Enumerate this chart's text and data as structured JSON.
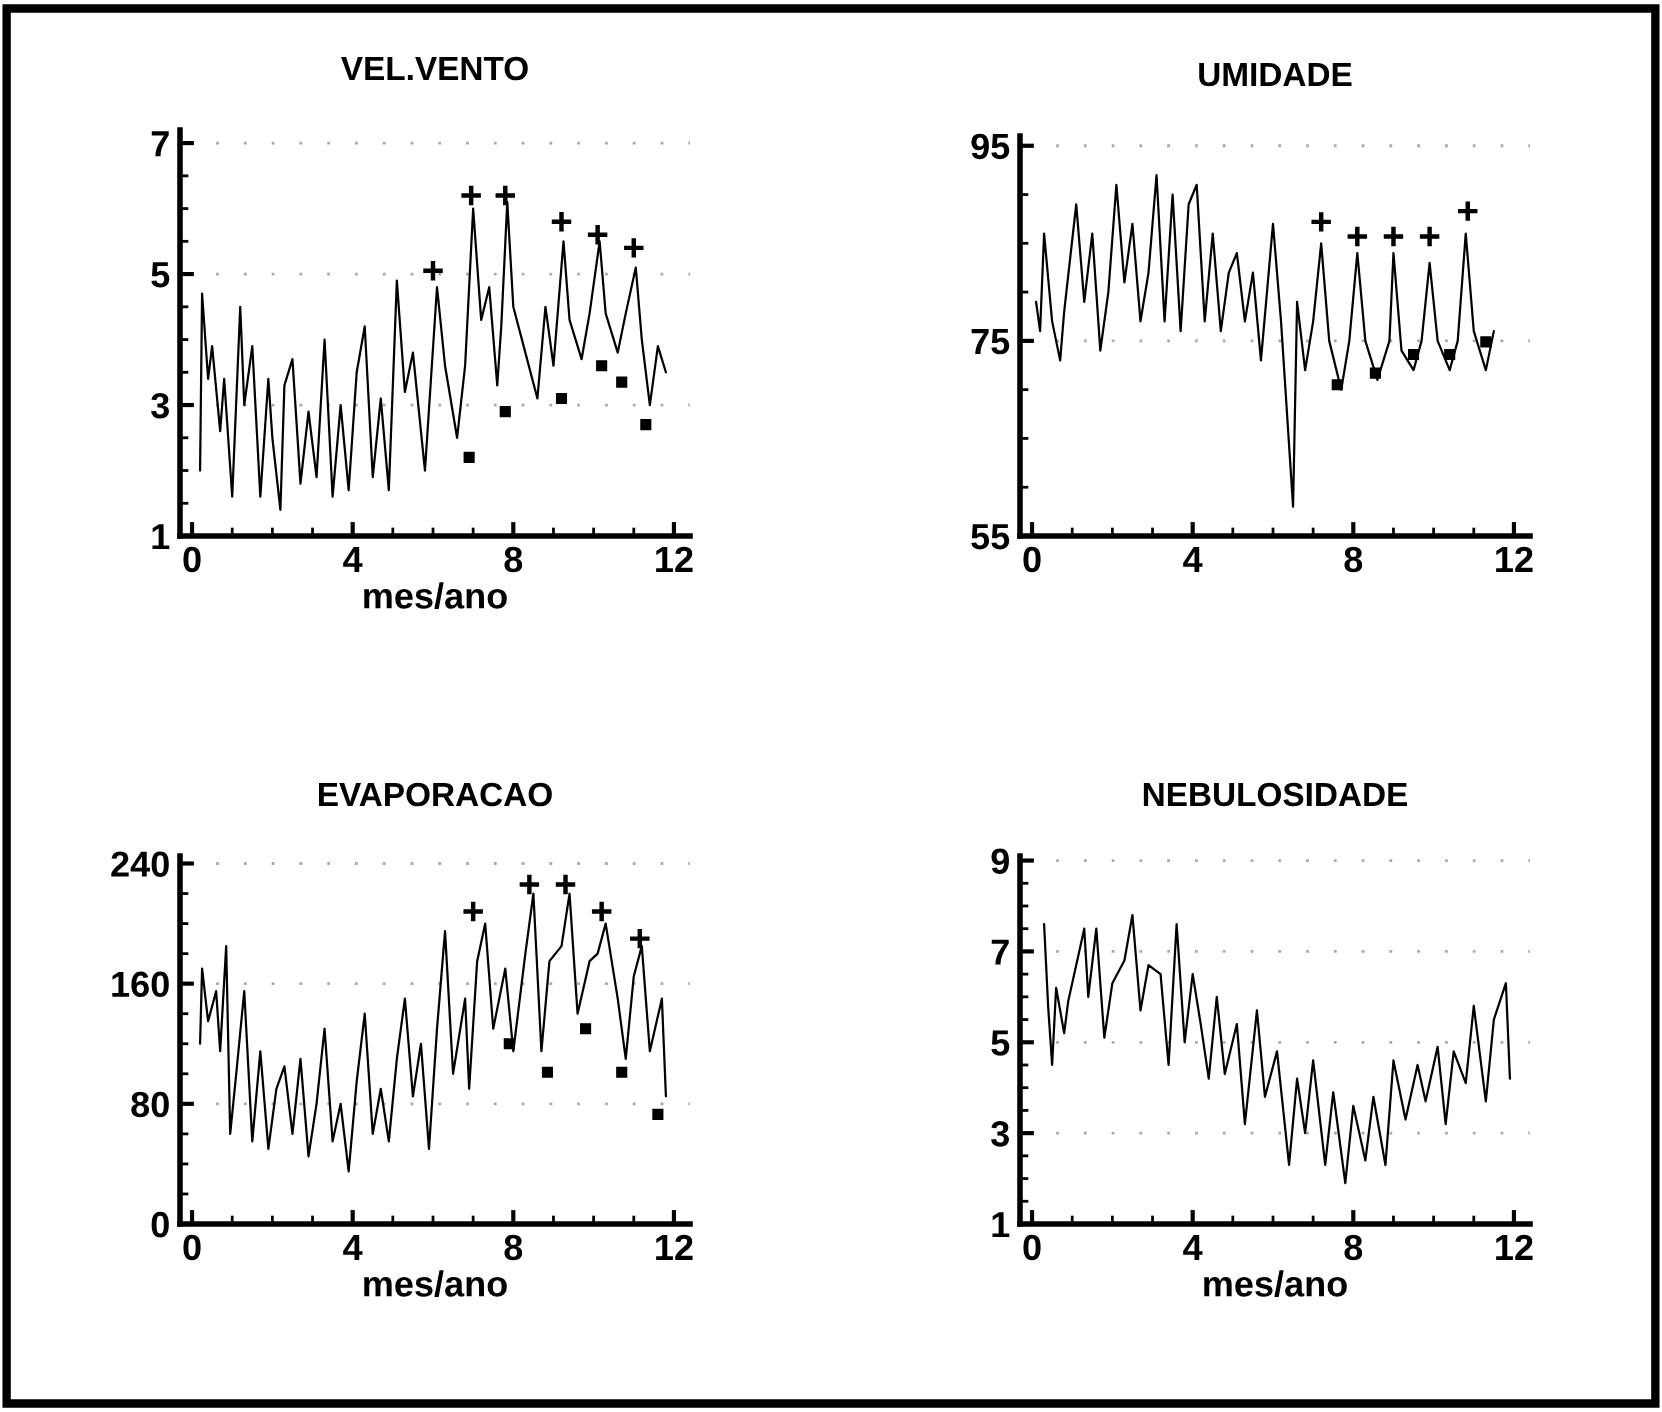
{
  "chart_data": [
    {
      "type": "line",
      "title": "VEL.VENTO",
      "xlabel": "mes/ano",
      "xlim": [
        -0.3,
        12.4
      ],
      "ylim": [
        1,
        7.2
      ],
      "xticks": [
        0,
        4,
        8,
        12
      ],
      "yticks": [
        1,
        3,
        5,
        7
      ],
      "grid": "y",
      "line_style": "solid",
      "series": [
        {
          "color": "#000000",
          "marker": "none",
          "x": [
            0.2,
            0.25,
            0.4,
            0.5,
            0.7,
            0.8,
            1.0,
            1.2,
            1.3,
            1.5,
            1.7,
            1.9,
            2.0,
            2.2,
            2.3,
            2.5,
            2.7,
            2.9,
            3.1,
            3.3,
            3.5,
            3.7,
            3.9,
            4.1,
            4.3,
            4.5,
            4.7,
            4.9,
            5.1,
            5.3,
            5.5,
            5.8,
            6.1,
            6.3,
            6.6,
            6.8,
            7.0,
            7.2,
            7.4,
            7.6,
            7.7,
            7.85,
            8.0,
            8.3,
            8.6,
            8.8,
            9.0,
            9.25,
            9.4,
            9.7,
            9.9,
            10.15,
            10.3,
            10.6,
            10.8,
            11.05,
            11.2,
            11.4,
            11.6,
            11.8
          ],
          "values": [
            2.0,
            4.7,
            3.4,
            3.9,
            2.6,
            3.4,
            1.6,
            4.5,
            3.0,
            3.9,
            1.6,
            3.4,
            2.5,
            1.4,
            3.3,
            3.7,
            1.8,
            2.9,
            1.9,
            4.0,
            1.6,
            3.0,
            1.7,
            3.5,
            4.2,
            1.9,
            3.1,
            1.7,
            4.9,
            3.2,
            3.8,
            2.0,
            4.8,
            3.6,
            2.5,
            3.6,
            6.0,
            4.3,
            4.8,
            3.3,
            4.2,
            6.1,
            4.5,
            3.8,
            3.1,
            4.5,
            3.6,
            5.5,
            4.3,
            3.7,
            4.4,
            5.5,
            4.4,
            3.8,
            4.4,
            5.1,
            4.0,
            3.0,
            3.9,
            3.5
          ]
        },
        {
          "type": "scatter",
          "color": "#000000",
          "marker": "cross",
          "x": [
            6.0,
            6.95,
            7.8,
            9.2,
            10.1,
            11.0
          ],
          "values": [
            5.05,
            6.2,
            6.2,
            5.8,
            5.6,
            5.4
          ]
        },
        {
          "type": "scatter",
          "color": "#000000",
          "marker": "square",
          "x": [
            6.9,
            7.8,
            9.2,
            10.2,
            10.7,
            11.3
          ],
          "values": [
            2.2,
            2.9,
            3.1,
            3.6,
            3.35,
            2.7
          ]
        }
      ]
    },
    {
      "type": "line",
      "title": "UMIDADE",
      "xlim": [
        -0.3,
        12.4
      ],
      "ylim": [
        55,
        96
      ],
      "xticks": [
        0,
        4,
        8,
        12
      ],
      "yticks": [
        55,
        75,
        95
      ],
      "grid": "y",
      "line_style": "solid",
      "series": [
        {
          "color": "#000000",
          "marker": "none",
          "x": [
            0.1,
            0.2,
            0.3,
            0.5,
            0.7,
            0.8,
            1.1,
            1.3,
            1.5,
            1.7,
            1.9,
            2.1,
            2.3,
            2.5,
            2.7,
            2.9,
            3.1,
            3.3,
            3.5,
            3.7,
            3.9,
            4.1,
            4.3,
            4.5,
            4.7,
            4.9,
            5.1,
            5.3,
            5.5,
            5.7,
            6.0,
            6.2,
            6.5,
            6.6,
            6.8,
            7.0,
            7.2,
            7.4,
            7.7,
            7.9,
            8.1,
            8.3,
            8.6,
            8.9,
            9.0,
            9.2,
            9.5,
            9.7,
            9.9,
            10.1,
            10.4,
            10.6,
            10.8,
            11.0,
            11.3,
            11.5
          ],
          "values": [
            79,
            76,
            86,
            77,
            73,
            78,
            89,
            79,
            86,
            74,
            80,
            91,
            81,
            87,
            77,
            82,
            92,
            77,
            90,
            76,
            89,
            91,
            77,
            86,
            76,
            82,
            84,
            77,
            82,
            73,
            87,
            77,
            58,
            79,
            72,
            77,
            85,
            75,
            70,
            75,
            84,
            75,
            71,
            75,
            84,
            74,
            72,
            75,
            83,
            75,
            72,
            75,
            86,
            76,
            72,
            76
          ]
        },
        {
          "type": "scatter",
          "color": "#000000",
          "marker": "cross",
          "x": [
            7.2,
            8.1,
            9.0,
            9.9,
            10.85
          ],
          "values": [
            87.2,
            85.7,
            85.7,
            85.7,
            88.3
          ]
        },
        {
          "type": "scatter",
          "color": "#000000",
          "marker": "square",
          "x": [
            7.6,
            8.55,
            9.5,
            10.4,
            11.3
          ],
          "values": [
            70.5,
            71.7,
            73.6,
            73.6,
            74.9
          ]
        }
      ]
    },
    {
      "type": "line",
      "title": "EVAPORACAO",
      "xlabel": "mes/ano",
      "xlim": [
        -0.3,
        12.4
      ],
      "ylim": [
        0,
        245
      ],
      "xticks": [
        0,
        4,
        8,
        12
      ],
      "yticks": [
        0,
        80,
        160,
        240
      ],
      "grid": "y",
      "line_style": "solid",
      "series": [
        {
          "color": "#000000",
          "marker": "none",
          "x": [
            0.2,
            0.25,
            0.4,
            0.6,
            0.7,
            0.85,
            0.95,
            1.1,
            1.3,
            1.5,
            1.7,
            1.9,
            2.1,
            2.3,
            2.5,
            2.7,
            2.9,
            3.1,
            3.3,
            3.5,
            3.7,
            3.9,
            4.1,
            4.3,
            4.5,
            4.7,
            4.9,
            5.1,
            5.3,
            5.5,
            5.7,
            5.9,
            6.1,
            6.3,
            6.5,
            6.8,
            6.9,
            7.1,
            7.3,
            7.5,
            7.8,
            8.0,
            8.3,
            8.5,
            8.7,
            8.9,
            9.2,
            9.4,
            9.6,
            9.9,
            10.1,
            10.3,
            10.6,
            10.8,
            11.0,
            11.2,
            11.4,
            11.7,
            11.8
          ],
          "values": [
            120,
            170,
            135,
            155,
            115,
            185,
            60,
            100,
            155,
            55,
            115,
            50,
            90,
            105,
            60,
            110,
            45,
            80,
            130,
            55,
            80,
            35,
            95,
            140,
            60,
            90,
            55,
            110,
            150,
            85,
            120,
            50,
            130,
            195,
            100,
            150,
            90,
            175,
            200,
            130,
            170,
            115,
            180,
            220,
            115,
            175,
            185,
            220,
            140,
            175,
            180,
            200,
            150,
            110,
            165,
            185,
            115,
            150,
            85
          ]
        },
        {
          "type": "scatter",
          "color": "#000000",
          "marker": "cross",
          "x": [
            7.0,
            8.4,
            9.3,
            10.2,
            11.15
          ],
          "values": [
            208,
            226,
            226,
            208,
            190
          ]
        },
        {
          "type": "scatter",
          "color": "#000000",
          "marker": "square",
          "x": [
            7.9,
            8.85,
            9.8,
            10.7,
            11.6
          ],
          "values": [
            120,
            101,
            130,
            101,
            73
          ]
        }
      ]
    },
    {
      "type": "line",
      "title": "NEBULOSIDADE",
      "xlabel": "mes/ano",
      "xlim": [
        -0.3,
        12.4
      ],
      "ylim": [
        1,
        9.1
      ],
      "xticks": [
        0,
        4,
        8,
        12
      ],
      "yticks": [
        1,
        3,
        5,
        7,
        9
      ],
      "grid": "y",
      "line_style": "solid",
      "series": [
        {
          "color": "#000000",
          "marker": "none",
          "x": [
            0.3,
            0.4,
            0.5,
            0.6,
            0.8,
            0.9,
            1.3,
            1.4,
            1.6,
            1.8,
            2.0,
            2.3,
            2.5,
            2.7,
            2.9,
            3.2,
            3.4,
            3.6,
            3.8,
            4.0,
            4.2,
            4.4,
            4.6,
            4.8,
            5.1,
            5.3,
            5.6,
            5.8,
            6.1,
            6.4,
            6.6,
            6.8,
            7.0,
            7.3,
            7.5,
            7.8,
            8.0,
            8.3,
            8.5,
            8.8,
            9.0,
            9.3,
            9.6,
            9.8,
            10.1,
            10.3,
            10.5,
            10.8,
            11.0,
            11.3,
            11.5,
            11.8,
            11.9
          ],
          "values": [
            7.6,
            5.8,
            4.5,
            6.2,
            5.2,
            5.9,
            7.5,
            6.0,
            7.5,
            5.1,
            6.3,
            6.8,
            7.8,
            5.7,
            6.7,
            6.5,
            4.5,
            7.6,
            5.0,
            6.5,
            5.4,
            4.2,
            6.0,
            4.3,
            5.4,
            3.2,
            5.7,
            3.8,
            4.8,
            2.3,
            4.2,
            3.0,
            4.6,
            2.3,
            3.9,
            1.9,
            3.6,
            2.4,
            3.8,
            2.3,
            4.6,
            3.3,
            4.5,
            3.7,
            4.9,
            3.2,
            4.8,
            4.1,
            5.8,
            3.7,
            5.5,
            6.3,
            4.2
          ]
        }
      ]
    }
  ]
}
